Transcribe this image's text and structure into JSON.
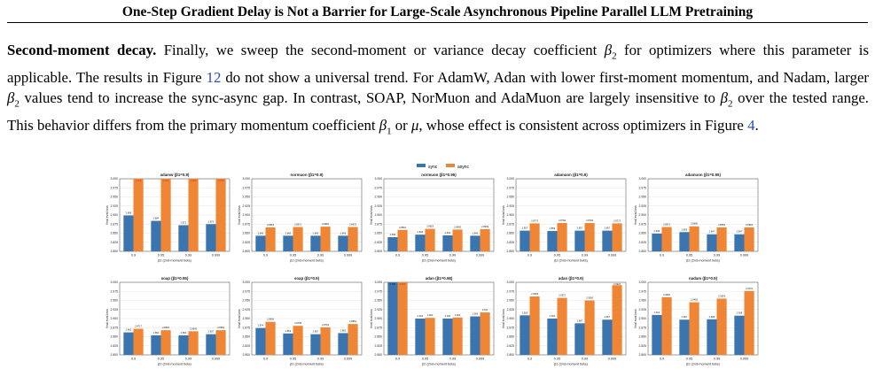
{
  "header": {
    "title": "One-Step Gradient Delay is Not a Barrier for Large-Scale Asynchronous Pipeline Parallel LLM Pretraining"
  },
  "paragraph": {
    "lead": "Second-moment decay.",
    "t1": " Finally, we sweep the second-moment or variance decay coefficient ",
    "t2": " for optimizers where this parameter is applicable. The results in Figure ",
    "ref1": "12",
    "t3": " do not show a universal trend. For AdamW, Adan with lower first-moment momentum, and Nadam, larger ",
    "t4": " values tend to increase the sync-async gap. In contrast, SOAP, NorMuon and AdaMuon are largely insensitive to ",
    "t5": " over the tested range. This behavior differs from the primary momentum coefficient ",
    "t6": " or ",
    "t7": ", whose effect is consistent across optimizers in Figure ",
    "ref2": "4",
    "t8": ".",
    "beta2": "β",
    "beta2_sub": "2",
    "beta1": "β",
    "beta1_sub": "1",
    "mu": "μ"
  },
  "colors": {
    "sync": "#3b75af",
    "async": "#ef8636",
    "grid": "#e6e6e6"
  },
  "chart_data": {
    "type": "bar",
    "legend": {
      "placement": "top-center",
      "entries": [
        "sync",
        "async"
      ]
    },
    "xlabel": "β2 (2nd-moment beta)",
    "ylabel": "final eval loss",
    "ylim": [
      2.8,
      3.0
    ],
    "yticks": [
      "2.800",
      "2.825",
      "2.850",
      "2.875",
      "2.900",
      "2.925",
      "2.950",
      "2.975",
      "3.000"
    ],
    "panels": [
      {
        "title": "adamw  (β1=0.9)",
        "categories": [
          "0.9",
          "0.95",
          "0.99",
          "0.999"
        ],
        "sync": [
          2.899,
          2.884,
          2.872,
          2.875
        ],
        "async": [
          3.0,
          3.0,
          3.0,
          3.0
        ],
        "sync_labels": [
          "2.899",
          "2.884",
          "2.872",
          "2.875"
        ],
        "async_labels": [
          "3.000",
          "3.000",
          "3.000",
          "3.000"
        ]
      },
      {
        "title": "normuon  (β1=0.9)",
        "categories": [
          "0.9",
          "0.95",
          "0.99",
          "0.999"
        ],
        "sync": [
          2.843,
          2.843,
          2.843,
          2.843
        ],
        "async": [
          2.866,
          2.867,
          2.868,
          2.867
        ],
        "sync_labels": [
          "2.843",
          "2.843",
          "2.843",
          "2.843"
        ],
        "async_labels": [
          "2.8663",
          "2.8672",
          "2.8681",
          "2.8672"
        ]
      },
      {
        "title": "normuon  (β1=0.95)",
        "categories": [
          "0.9",
          "0.95",
          "0.99",
          "0.999"
        ],
        "sync": [
          2.839,
          2.846,
          2.844,
          2.843
        ],
        "async": [
          2.859,
          2.862,
          2.86,
          2.861
        ],
        "sync_labels": [
          "2.839",
          "2.846",
          "2.844",
          "2.843"
        ],
        "async_labels": [
          "2.8591",
          "2.8618",
          "2.8600",
          "2.8609"
        ]
      },
      {
        "title": "adamuon  (β1=0.9)",
        "categories": [
          "0.9",
          "0.95",
          "0.99",
          "0.999"
        ],
        "sync": [
          2.857,
          2.856,
          2.857,
          2.857
        ],
        "async": [
          2.877,
          2.878,
          2.878,
          2.877
        ],
        "sync_labels": [
          "2.857",
          "2.856",
          "2.857",
          "2.857"
        ],
        "async_labels": [
          "2.8773",
          "2.8782",
          "2.8782",
          "2.8773"
        ]
      },
      {
        "title": "adamuon  (β1=0.95)",
        "categories": [
          "0.9",
          "0.95",
          "0.99",
          "0.999"
        ],
        "sync": [
          2.849,
          2.853,
          2.847,
          2.847
        ],
        "async": [
          2.867,
          2.869,
          2.866,
          2.866
        ],
        "sync_labels": [
          "2.849",
          "2.853",
          "2.847",
          "2.847"
        ],
        "async_labels": [
          "2.8672",
          "2.8690",
          "2.8663",
          "2.8663"
        ]
      },
      {
        "title": "soap  (β1=0.95)",
        "categories": [
          "0.9",
          "0.95",
          "0.99",
          "0.999"
        ],
        "sync": [
          2.862,
          2.854,
          2.854,
          2.857
        ],
        "async": [
          2.872,
          2.868,
          2.865,
          2.868
        ],
        "sync_labels": [
          "2.862",
          "2.854",
          "2.854",
          "2.857"
        ],
        "async_labels": [
          "2.8717",
          "2.8681",
          "2.8645",
          "2.8681"
        ]
      },
      {
        "title": "soap  (β1=0.9)",
        "categories": [
          "0.9",
          "0.95",
          "0.99",
          "0.999"
        ],
        "sync": [
          2.874,
          2.859,
          2.857,
          2.86
        ],
        "async": [
          2.891,
          2.88,
          2.876,
          2.885
        ],
        "sync_labels": [
          "2.874",
          "2.859",
          "2.857",
          "2.860"
        ],
        "async_labels": [
          "2.8906",
          "2.8798",
          "2.8762",
          "2.8852"
        ]
      },
      {
        "title": "adan  (β1=0.98)",
        "categories": [
          "0.9",
          "0.95",
          "0.99",
          "0.999"
        ],
        "sync": [
          3.0,
          2.9,
          2.9,
          2.906
        ],
        "async": [
          3.0,
          2.902,
          2.903,
          2.917
        ],
        "sync_labels": [
          "3.000",
          "2.900",
          "2.900",
          "2.906"
        ],
        "async_labels": [
          "3.000",
          "2.902",
          "2.903",
          "2.917"
        ]
      },
      {
        "title": "adan  (β1=0.9)",
        "categories": [
          "0.9",
          "0.95",
          "0.99",
          "0.999"
        ],
        "sync": [
          2.909,
          2.9,
          2.887,
          2.897
        ],
        "async": [
          2.961,
          2.957,
          2.95,
          2.992
        ],
        "sync_labels": [
          "2.909",
          "2.900",
          "2.887",
          "2.897"
        ],
        "async_labels": [
          "2.9608",
          "2.9572",
          "2.9500",
          "2.9923"
        ]
      },
      {
        "title": "nadam  (β1=0.9)",
        "categories": [
          "0.9",
          "0.95",
          "0.99",
          "0.999"
        ],
        "sync": [
          2.91,
          2.897,
          2.898,
          2.908
        ],
        "async": [
          2.959,
          2.945,
          2.955,
          2.976
        ],
        "sync_labels": [
          "2.910",
          "2.897",
          "2.898",
          "2.908"
        ],
        "async_labels": [
          "2.9590",
          "2.9455",
          "2.9554",
          "2.9761"
        ]
      }
    ]
  }
}
